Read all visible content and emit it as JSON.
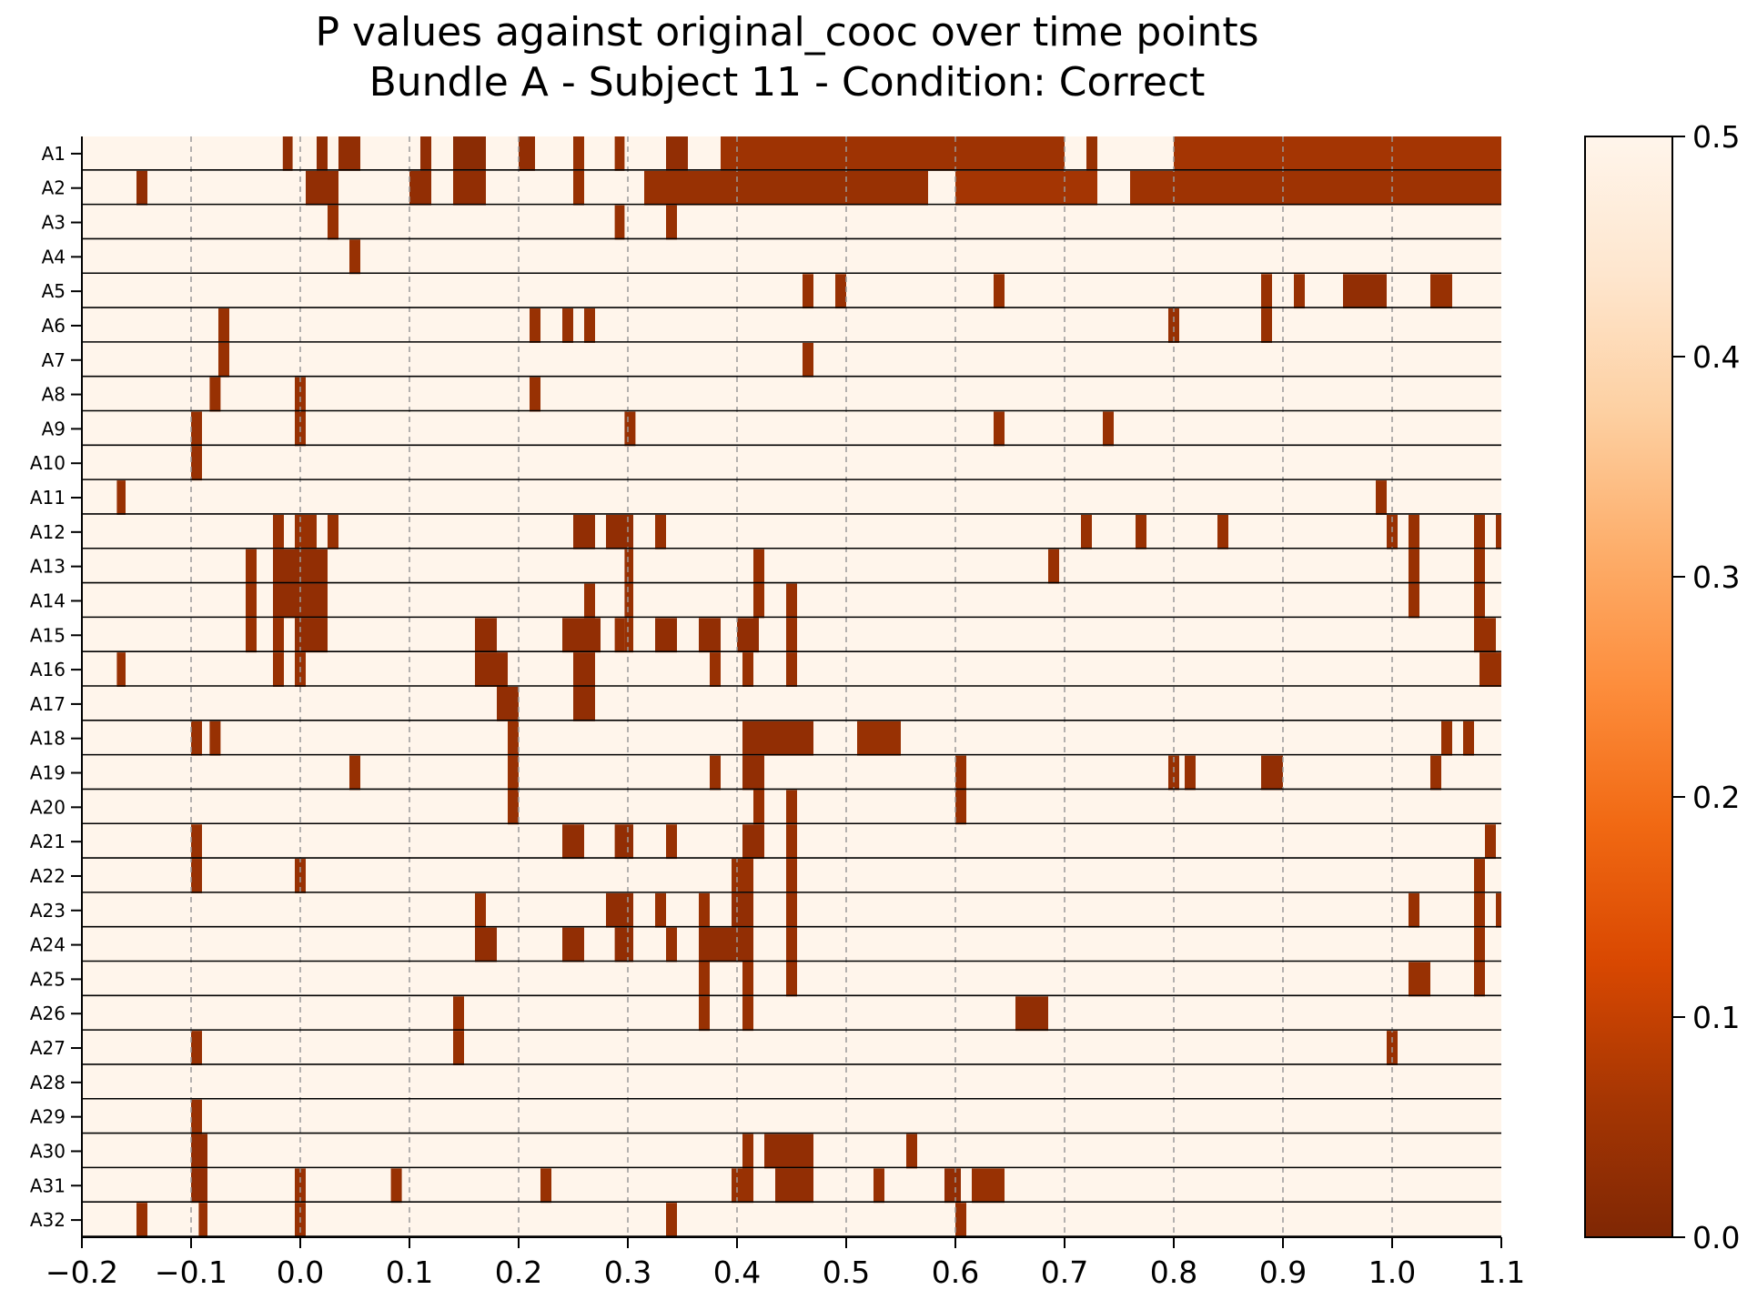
{
  "chart_data": {
    "type": "heatmap",
    "title": "P values against original_cooc over time points",
    "subtitle": "Bundle A - Subject 11 - Condition: Correct",
    "xlabel": "",
    "ylabel": "",
    "xlim": [
      -0.2,
      1.1
    ],
    "x_ticks": [
      "−0.2",
      "−0.1",
      "0.0",
      "0.1",
      "0.2",
      "0.3",
      "0.4",
      "0.5",
      "0.6",
      "0.7",
      "0.8",
      "0.9",
      "1.0",
      "1.1"
    ],
    "x_tick_values": [
      -0.2,
      -0.1,
      0.0,
      0.1,
      0.2,
      0.3,
      0.4,
      0.5,
      0.6,
      0.7,
      0.8,
      0.9,
      1.0,
      1.1
    ],
    "grid_x": [
      -0.1,
      0.0,
      0.1,
      0.2,
      0.3,
      0.4,
      0.5,
      0.6,
      0.7,
      0.8,
      0.9,
      1.0
    ],
    "colorbar": {
      "range": [
        0.0,
        0.5
      ],
      "ticks": [
        "0.0",
        "0.1",
        "0.2",
        "0.3",
        "0.4",
        "0.5"
      ],
      "tick_values": [
        0.0,
        0.1,
        0.2,
        0.3,
        0.4,
        0.5
      ],
      "colormap": "Oranges_r"
    },
    "background_value": 0.5,
    "rows": [
      {
        "label": "A1",
        "segments": [
          [
            -0.016,
            -0.007,
            0.03
          ],
          [
            0.015,
            0.025,
            0.03
          ],
          [
            0.035,
            0.055,
            0.03
          ],
          [
            0.11,
            0.12,
            0.03
          ],
          [
            0.14,
            0.17,
            0.02
          ],
          [
            0.2,
            0.215,
            0.03
          ],
          [
            0.25,
            0.26,
            0.04
          ],
          [
            0.288,
            0.297,
            0.04
          ],
          [
            0.335,
            0.355,
            0.03
          ],
          [
            0.385,
            0.7,
            0.05
          ],
          [
            0.72,
            0.73,
            0.04
          ],
          [
            0.8,
            1.1,
            0.06
          ]
        ]
      },
      {
        "label": "A2",
        "segments": [
          [
            -0.15,
            -0.14,
            0.03
          ],
          [
            0.005,
            0.035,
            0.03
          ],
          [
            0.1,
            0.12,
            0.03
          ],
          [
            0.14,
            0.17,
            0.03
          ],
          [
            0.25,
            0.26,
            0.04
          ],
          [
            0.315,
            0.575,
            0.04
          ],
          [
            0.6,
            0.73,
            0.06
          ],
          [
            0.76,
            1.1,
            0.05
          ]
        ]
      },
      {
        "label": "A3",
        "segments": [
          [
            0.025,
            0.035,
            0.04
          ],
          [
            0.288,
            0.297,
            0.04
          ],
          [
            0.335,
            0.345,
            0.04
          ]
        ]
      },
      {
        "label": "A4",
        "segments": [
          [
            0.045,
            0.055,
            0.04
          ]
        ]
      },
      {
        "label": "A5",
        "segments": [
          [
            0.46,
            0.47,
            0.04
          ],
          [
            0.49,
            0.5,
            0.04
          ],
          [
            0.635,
            0.645,
            0.04
          ],
          [
            0.88,
            0.89,
            0.04
          ],
          [
            0.91,
            0.92,
            0.04
          ],
          [
            0.955,
            0.995,
            0.03
          ],
          [
            1.035,
            1.055,
            0.04
          ]
        ]
      },
      {
        "label": "A6",
        "segments": [
          [
            -0.075,
            -0.065,
            0.04
          ],
          [
            0.21,
            0.22,
            0.04
          ],
          [
            0.24,
            0.25,
            0.04
          ],
          [
            0.26,
            0.27,
            0.04
          ],
          [
            0.795,
            0.805,
            0.04
          ],
          [
            0.88,
            0.89,
            0.04
          ]
        ]
      },
      {
        "label": "A7",
        "segments": [
          [
            -0.075,
            -0.065,
            0.04
          ],
          [
            0.46,
            0.47,
            0.04
          ]
        ]
      },
      {
        "label": "A8",
        "segments": [
          [
            -0.083,
            -0.073,
            0.04
          ],
          [
            -0.005,
            0.005,
            0.04
          ],
          [
            0.21,
            0.22,
            0.04
          ]
        ]
      },
      {
        "label": "A9",
        "segments": [
          [
            -0.1,
            -0.09,
            0.04
          ],
          [
            -0.005,
            0.005,
            0.04
          ],
          [
            0.297,
            0.307,
            0.04
          ],
          [
            0.635,
            0.645,
            0.04
          ],
          [
            0.735,
            0.745,
            0.04
          ]
        ]
      },
      {
        "label": "A10",
        "segments": [
          [
            -0.1,
            -0.09,
            0.04
          ]
        ]
      },
      {
        "label": "A11",
        "segments": [
          [
            -0.168,
            -0.16,
            0.04
          ],
          [
            0.985,
            0.995,
            0.04
          ]
        ]
      },
      {
        "label": "A12",
        "segments": [
          [
            -0.025,
            -0.015,
            0.04
          ],
          [
            -0.005,
            0.015,
            0.04
          ],
          [
            0.025,
            0.035,
            0.04
          ],
          [
            0.25,
            0.27,
            0.03
          ],
          [
            0.28,
            0.305,
            0.03
          ],
          [
            0.325,
            0.335,
            0.04
          ],
          [
            0.715,
            0.725,
            0.04
          ],
          [
            0.765,
            0.775,
            0.04
          ],
          [
            0.84,
            0.85,
            0.04
          ],
          [
            0.995,
            1.005,
            0.04
          ],
          [
            1.015,
            1.025,
            0.04
          ],
          [
            1.075,
            1.085,
            0.04
          ],
          [
            1.095,
            1.1,
            0.04
          ]
        ]
      },
      {
        "label": "A13",
        "segments": [
          [
            -0.05,
            -0.04,
            0.04
          ],
          [
            -0.025,
            0.025,
            0.03
          ],
          [
            0.297,
            0.305,
            0.04
          ],
          [
            0.415,
            0.425,
            0.04
          ],
          [
            0.685,
            0.695,
            0.04
          ],
          [
            1.015,
            1.025,
            0.04
          ],
          [
            1.075,
            1.085,
            0.04
          ]
        ]
      },
      {
        "label": "A14",
        "segments": [
          [
            -0.05,
            -0.04,
            0.04
          ],
          [
            -0.025,
            0.025,
            0.03
          ],
          [
            0.26,
            0.27,
            0.04
          ],
          [
            0.297,
            0.305,
            0.04
          ],
          [
            0.415,
            0.425,
            0.04
          ],
          [
            0.445,
            0.455,
            0.04
          ],
          [
            1.015,
            1.025,
            0.04
          ],
          [
            1.075,
            1.085,
            0.04
          ]
        ]
      },
      {
        "label": "A15",
        "segments": [
          [
            -0.05,
            -0.04,
            0.04
          ],
          [
            -0.025,
            -0.015,
            0.04
          ],
          [
            -0.005,
            0.025,
            0.03
          ],
          [
            0.16,
            0.18,
            0.03
          ],
          [
            0.24,
            0.275,
            0.03
          ],
          [
            0.288,
            0.297,
            0.04
          ],
          [
            0.297,
            0.305,
            0.04
          ],
          [
            0.325,
            0.345,
            0.03
          ],
          [
            0.365,
            0.385,
            0.03
          ],
          [
            0.4,
            0.42,
            0.03
          ],
          [
            0.445,
            0.455,
            0.04
          ],
          [
            1.075,
            1.095,
            0.04
          ]
        ]
      },
      {
        "label": "A16",
        "segments": [
          [
            -0.168,
            -0.16,
            0.04
          ],
          [
            -0.025,
            -0.015,
            0.04
          ],
          [
            -0.005,
            0.005,
            0.04
          ],
          [
            0.16,
            0.19,
            0.03
          ],
          [
            0.25,
            0.27,
            0.03
          ],
          [
            0.375,
            0.385,
            0.04
          ],
          [
            0.405,
            0.415,
            0.04
          ],
          [
            0.445,
            0.455,
            0.04
          ],
          [
            1.08,
            1.1,
            0.04
          ]
        ]
      },
      {
        "label": "A17",
        "segments": [
          [
            0.18,
            0.2,
            0.03
          ],
          [
            0.25,
            0.27,
            0.03
          ]
        ]
      },
      {
        "label": "A18",
        "segments": [
          [
            -0.1,
            -0.09,
            0.04
          ],
          [
            -0.083,
            -0.073,
            0.04
          ],
          [
            0.19,
            0.2,
            0.04
          ],
          [
            0.405,
            0.47,
            0.03
          ],
          [
            0.51,
            0.55,
            0.04
          ],
          [
            1.045,
            1.055,
            0.04
          ],
          [
            1.065,
            1.075,
            0.04
          ]
        ]
      },
      {
        "label": "A19",
        "segments": [
          [
            0.045,
            0.055,
            0.04
          ],
          [
            0.19,
            0.2,
            0.04
          ],
          [
            0.375,
            0.385,
            0.04
          ],
          [
            0.405,
            0.425,
            0.03
          ],
          [
            0.6,
            0.61,
            0.04
          ],
          [
            0.795,
            0.805,
            0.04
          ],
          [
            0.81,
            0.82,
            0.04
          ],
          [
            0.88,
            0.9,
            0.03
          ],
          [
            1.035,
            1.045,
            0.04
          ]
        ]
      },
      {
        "label": "A20",
        "segments": [
          [
            0.19,
            0.2,
            0.04
          ],
          [
            0.415,
            0.425,
            0.04
          ],
          [
            0.445,
            0.455,
            0.04
          ],
          [
            0.6,
            0.61,
            0.04
          ]
        ]
      },
      {
        "label": "A21",
        "segments": [
          [
            -0.1,
            -0.09,
            0.04
          ],
          [
            0.24,
            0.26,
            0.03
          ],
          [
            0.288,
            0.305,
            0.03
          ],
          [
            0.335,
            0.345,
            0.04
          ],
          [
            0.405,
            0.425,
            0.03
          ],
          [
            0.445,
            0.455,
            0.04
          ],
          [
            1.085,
            1.095,
            0.04
          ]
        ]
      },
      {
        "label": "A22",
        "segments": [
          [
            -0.1,
            -0.09,
            0.04
          ],
          [
            -0.005,
            0.005,
            0.04
          ],
          [
            0.395,
            0.405,
            0.04
          ],
          [
            0.405,
            0.415,
            0.04
          ],
          [
            0.445,
            0.455,
            0.04
          ],
          [
            1.075,
            1.085,
            0.04
          ]
        ]
      },
      {
        "label": "A23",
        "segments": [
          [
            0.16,
            0.17,
            0.04
          ],
          [
            0.28,
            0.305,
            0.03
          ],
          [
            0.325,
            0.335,
            0.04
          ],
          [
            0.365,
            0.375,
            0.04
          ],
          [
            0.395,
            0.415,
            0.03
          ],
          [
            0.445,
            0.455,
            0.04
          ],
          [
            1.015,
            1.025,
            0.04
          ],
          [
            1.075,
            1.085,
            0.04
          ],
          [
            1.095,
            1.1,
            0.04
          ]
        ]
      },
      {
        "label": "A24",
        "segments": [
          [
            0.16,
            0.18,
            0.03
          ],
          [
            0.24,
            0.26,
            0.03
          ],
          [
            0.288,
            0.305,
            0.03
          ],
          [
            0.335,
            0.345,
            0.04
          ],
          [
            0.365,
            0.415,
            0.03
          ],
          [
            0.445,
            0.455,
            0.04
          ],
          [
            1.075,
            1.085,
            0.04
          ]
        ]
      },
      {
        "label": "A25",
        "segments": [
          [
            0.365,
            0.375,
            0.04
          ],
          [
            0.405,
            0.415,
            0.04
          ],
          [
            0.445,
            0.455,
            0.04
          ],
          [
            1.015,
            1.035,
            0.04
          ],
          [
            1.075,
            1.085,
            0.04
          ]
        ]
      },
      {
        "label": "A26",
        "segments": [
          [
            0.14,
            0.15,
            0.04
          ],
          [
            0.365,
            0.375,
            0.04
          ],
          [
            0.405,
            0.415,
            0.04
          ],
          [
            0.655,
            0.685,
            0.03
          ]
        ]
      },
      {
        "label": "A27",
        "segments": [
          [
            -0.1,
            -0.09,
            0.04
          ],
          [
            0.14,
            0.15,
            0.04
          ],
          [
            0.995,
            1.005,
            0.04
          ]
        ]
      },
      {
        "label": "A28",
        "segments": []
      },
      {
        "label": "A29",
        "segments": [
          [
            -0.1,
            -0.09,
            0.04
          ]
        ]
      },
      {
        "label": "A30",
        "segments": [
          [
            -0.1,
            -0.085,
            0.03
          ],
          [
            0.405,
            0.415,
            0.04
          ],
          [
            0.425,
            0.47,
            0.03
          ],
          [
            0.555,
            0.565,
            0.04
          ]
        ]
      },
      {
        "label": "A31",
        "segments": [
          [
            -0.1,
            -0.085,
            0.03
          ],
          [
            -0.005,
            0.005,
            0.04
          ],
          [
            0.083,
            0.093,
            0.04
          ],
          [
            0.22,
            0.23,
            0.04
          ],
          [
            0.395,
            0.405,
            0.04
          ],
          [
            0.405,
            0.415,
            0.04
          ],
          [
            0.435,
            0.47,
            0.03
          ],
          [
            0.525,
            0.535,
            0.04
          ],
          [
            0.59,
            0.605,
            0.03
          ],
          [
            0.615,
            0.645,
            0.04
          ]
        ]
      },
      {
        "label": "A32",
        "segments": [
          [
            -0.15,
            -0.14,
            0.04
          ],
          [
            -0.093,
            -0.085,
            0.04
          ],
          [
            -0.005,
            0.005,
            0.04
          ],
          [
            0.335,
            0.345,
            0.04
          ],
          [
            0.6,
            0.61,
            0.04
          ]
        ]
      }
    ]
  }
}
